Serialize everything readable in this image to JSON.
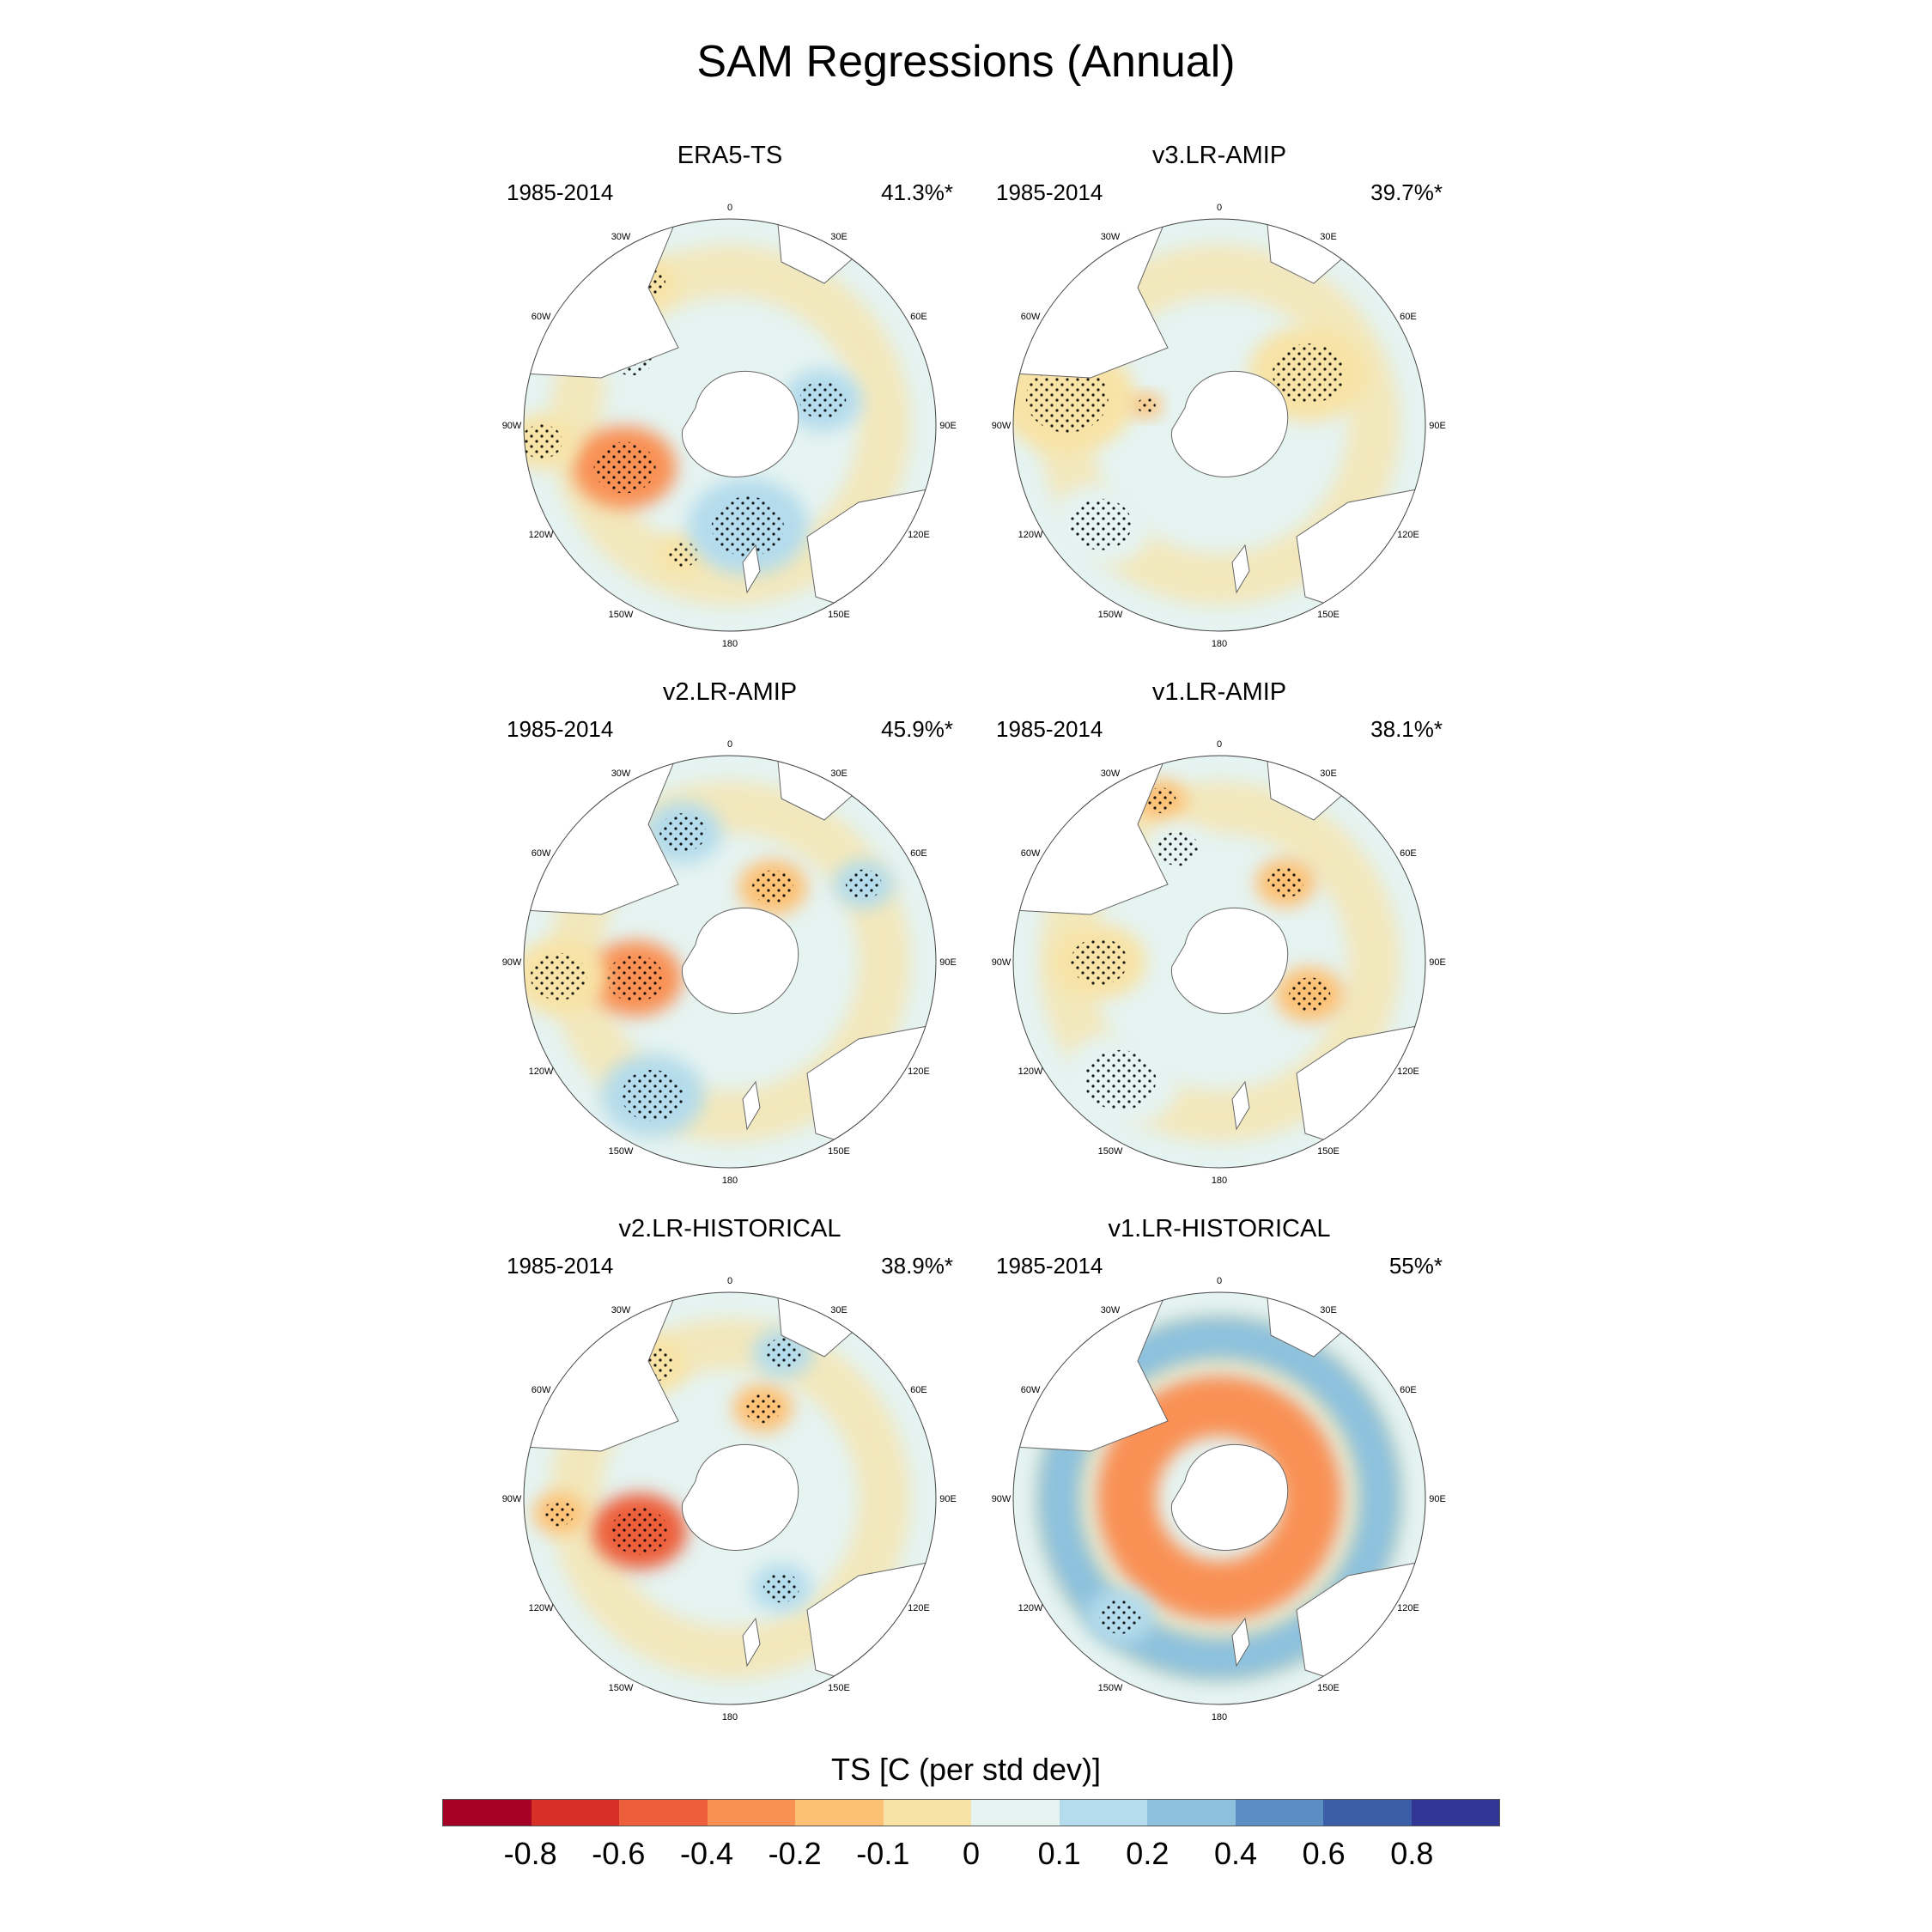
{
  "figure": {
    "title": "SAM Regressions (Annual)",
    "colorbar_title": "TS [C (per std dev)]",
    "colorbar_colors": [
      "#a50026",
      "#d73027",
      "#ed5e3a",
      "#f99155",
      "#fdc175",
      "#f8e3a6",
      "#e5f3f1",
      "#b4dcec",
      "#8dc1dd",
      "#5b8fc3",
      "#3c5ea8",
      "#313695"
    ],
    "colorbar_ticks": [
      "-0.8",
      "-0.6",
      "-0.4",
      "-0.2",
      "-0.1",
      "0",
      "0.1",
      "0.2",
      "0.4",
      "0.6",
      "0.8"
    ],
    "lon_labels": [
      "0",
      "30E",
      "60E",
      "90E",
      "120E",
      "150E",
      "180",
      "150W",
      "120W",
      "90W",
      "60W",
      "30W"
    ]
  },
  "panels": [
    {
      "title": "ERA5-TS",
      "period": "1985-2014",
      "pct": "41.3%*",
      "features": [
        {
          "kind": "pos3",
          "lon": -112,
          "lat": -57,
          "r": 60
        },
        {
          "kind": "pos1",
          "lon": -160,
          "lat": -50,
          "r": 30
        },
        {
          "kind": "neg2",
          "lon": 170,
          "lat": -60,
          "r": 70
        },
        {
          "kind": "neg2",
          "lon": 75,
          "lat": -62,
          "r": 45
        },
        {
          "kind": "pos1",
          "lon": -30,
          "lat": -42,
          "r": 35
        },
        {
          "kind": "neg1",
          "lon": -55,
          "lat": -55,
          "r": 45
        },
        {
          "kind": "pos1",
          "lon": -95,
          "lat": -35,
          "r": 40
        }
      ]
    },
    {
      "title": "v3.LR-AMIP",
      "period": "1985-2014",
      "pct": "39.7%*",
      "features": [
        {
          "kind": "pos1",
          "lon": -80,
          "lat": -45,
          "r": 80
        },
        {
          "kind": "pos1",
          "lon": 60,
          "lat": -60,
          "r": 70
        },
        {
          "kind": "pos2",
          "lon": -75,
          "lat": -68,
          "r": 18
        },
        {
          "kind": "neg1",
          "lon": -130,
          "lat": -45,
          "r": 60
        }
      ]
    },
    {
      "title": "v2.LR-AMIP",
      "period": "1985-2014",
      "pct": "45.9%*",
      "features": [
        {
          "kind": "pos3",
          "lon": -100,
          "lat": -62,
          "r": 55
        },
        {
          "kind": "pos2",
          "lon": 30,
          "lat": -65,
          "r": 40
        },
        {
          "kind": "neg2",
          "lon": -150,
          "lat": -45,
          "r": 60
        },
        {
          "kind": "neg2",
          "lon": -20,
          "lat": -50,
          "r": 45
        },
        {
          "kind": "neg2",
          "lon": 60,
          "lat": -45,
          "r": 35
        },
        {
          "kind": "pos1",
          "lon": -95,
          "lat": -40,
          "r": 55
        }
      ]
    },
    {
      "title": "v1.LR-AMIP",
      "period": "1985-2014",
      "pct": "38.1%*",
      "features": [
        {
          "kind": "pos2",
          "lon": 40,
          "lat": -60,
          "r": 35
        },
        {
          "kind": "pos2",
          "lon": 110,
          "lat": -62,
          "r": 40
        },
        {
          "kind": "pos2",
          "lon": -20,
          "lat": -40,
          "r": 30
        },
        {
          "kind": "neg1",
          "lon": -140,
          "lat": -45,
          "r": 70
        },
        {
          "kind": "neg1",
          "lon": -20,
          "lat": -55,
          "r": 40
        },
        {
          "kind": "pos1",
          "lon": -90,
          "lat": -55,
          "r": 55
        }
      ]
    },
    {
      "title": "v2.LR-HISTORICAL",
      "period": "1985-2014",
      "pct": "38.9%*",
      "features": [
        {
          "kind": "pos4",
          "lon": -110,
          "lat": -62,
          "r": 55
        },
        {
          "kind": "pos2",
          "lon": 20,
          "lat": -62,
          "r": 35
        },
        {
          "kind": "neg2",
          "lon": 150,
          "lat": -60,
          "r": 35
        },
        {
          "kind": "neg2",
          "lon": 20,
          "lat": -45,
          "r": 35
        },
        {
          "kind": "pos2",
          "lon": -95,
          "lat": -40,
          "r": 30
        },
        {
          "kind": "pos1",
          "lon": -30,
          "lat": -45,
          "r": 40
        }
      ]
    },
    {
      "title": "v1.LR-HISTORICAL",
      "period": "1985-2014",
      "pct": "55%*",
      "features": [
        {
          "kind": "ringpos",
          "lon": 0,
          "lat": -60,
          "r": 0
        },
        {
          "kind": "ringneg",
          "lon": 0,
          "lat": -45,
          "r": 0
        },
        {
          "kind": "neg2",
          "lon": -140,
          "lat": -45,
          "r": 40
        },
        {
          "kind": "neg3",
          "lon": -50,
          "lat": -45,
          "r": 20
        }
      ]
    }
  ]
}
